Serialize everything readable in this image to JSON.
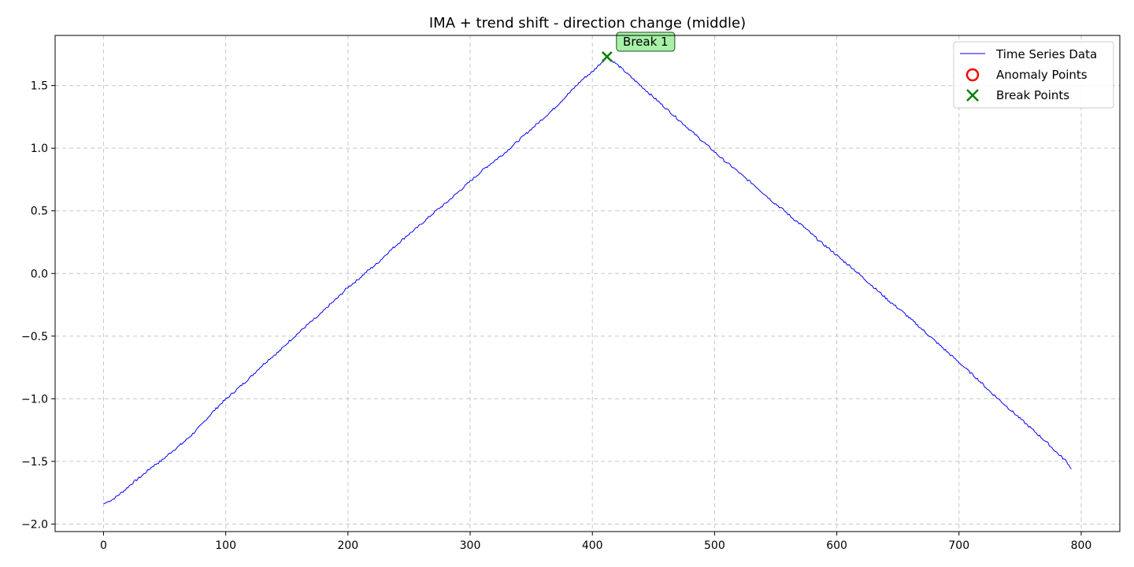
{
  "chart_data": {
    "type": "line",
    "title": "IMA + trend shift - direction change (middle)",
    "xlabel": "",
    "ylabel": "",
    "xlim": [
      -39.6,
      831.6
    ],
    "ylim": [
      -2.06,
      1.9
    ],
    "x_ticks": [
      "0",
      "100",
      "200",
      "300",
      "400",
      "500",
      "600",
      "700",
      "800"
    ],
    "y_ticks": [
      "−2.0",
      "−1.5",
      "−1.0",
      "−0.5",
      "0.0",
      "0.5",
      "1.0",
      "1.5"
    ],
    "grid": true,
    "legend_position": "top-right",
    "series": [
      {
        "name": "Time Series Data",
        "color": "#0000ff",
        "x": [
          0,
          8,
          16,
          24,
          32,
          40,
          48,
          56,
          64,
          72,
          80,
          88,
          96,
          104,
          112,
          120,
          128,
          136,
          144,
          152,
          160,
          168,
          176,
          184,
          192,
          200,
          208,
          216,
          224,
          232,
          240,
          248,
          256,
          264,
          272,
          280,
          288,
          296,
          304,
          312,
          320,
          328,
          336,
          344,
          352,
          360,
          368,
          376,
          384,
          392,
          400,
          406,
          412,
          420,
          428,
          436,
          444,
          452,
          460,
          468,
          476,
          484,
          492,
          500,
          508,
          516,
          524,
          532,
          540,
          548,
          556,
          564,
          572,
          580,
          588,
          596,
          604,
          612,
          620,
          628,
          636,
          644,
          652,
          660,
          668,
          676,
          684,
          692,
          700,
          708,
          716,
          724,
          732,
          740,
          748,
          756,
          764,
          772,
          780,
          788,
          792
        ],
        "values": [
          -1.84,
          -1.8,
          -1.74,
          -1.67,
          -1.61,
          -1.54,
          -1.49,
          -1.42,
          -1.36,
          -1.29,
          -1.21,
          -1.12,
          -1.04,
          -0.97,
          -0.9,
          -0.83,
          -0.75,
          -0.68,
          -0.62,
          -0.54,
          -0.47,
          -0.4,
          -0.34,
          -0.26,
          -0.19,
          -0.11,
          -0.05,
          0.02,
          0.08,
          0.16,
          0.23,
          0.3,
          0.36,
          0.43,
          0.5,
          0.56,
          0.63,
          0.7,
          0.77,
          0.84,
          0.9,
          0.96,
          1.03,
          1.1,
          1.17,
          1.24,
          1.31,
          1.39,
          1.47,
          1.55,
          1.61,
          1.67,
          1.73,
          1.67,
          1.6,
          1.53,
          1.46,
          1.39,
          1.32,
          1.25,
          1.18,
          1.11,
          1.04,
          0.97,
          0.9,
          0.84,
          0.77,
          0.71,
          0.64,
          0.57,
          0.51,
          0.44,
          0.38,
          0.31,
          0.24,
          0.18,
          0.11,
          0.05,
          -0.02,
          -0.09,
          -0.16,
          -0.23,
          -0.29,
          -0.36,
          -0.43,
          -0.5,
          -0.57,
          -0.64,
          -0.71,
          -0.78,
          -0.85,
          -0.93,
          -1.0,
          -1.07,
          -1.14,
          -1.21,
          -1.28,
          -1.35,
          -1.43,
          -1.5,
          -1.56
        ]
      },
      {
        "name": "Anomaly Points",
        "color": "#ff0000",
        "marker": "circle",
        "x": [],
        "values": []
      },
      {
        "name": "Break Points",
        "color": "#008000",
        "marker": "x",
        "x": [
          412
        ],
        "values": [
          1.73
        ]
      }
    ],
    "annotations": [
      {
        "text": "Break 1",
        "x": 412,
        "y": 1.73,
        "bg": "#a8f0a8"
      }
    ]
  }
}
